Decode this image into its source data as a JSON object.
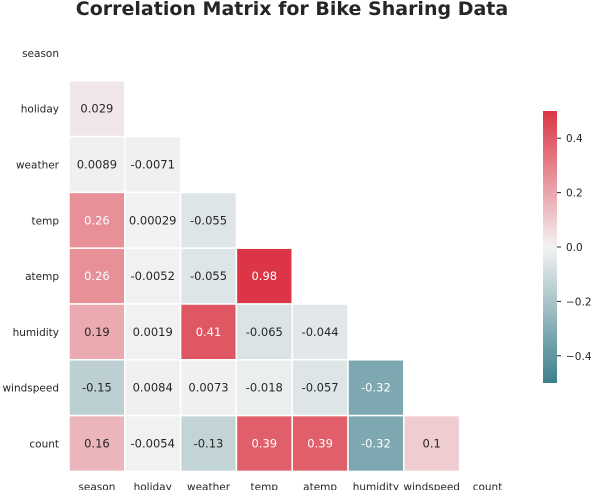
{
  "chart_data": {
    "type": "heatmap",
    "title": "Correlation Matrix for Bike Sharing Data",
    "labels": [
      "season",
      "holiday",
      "weather",
      "temp",
      "atemp",
      "humidity",
      "windspeed",
      "count"
    ],
    "mask": "upper-triangle-including-diagonal",
    "values": [
      [
        null,
        null,
        null,
        null,
        null,
        null,
        null,
        null
      ],
      [
        0.029,
        null,
        null,
        null,
        null,
        null,
        null,
        null
      ],
      [
        0.0089,
        -0.0071,
        null,
        null,
        null,
        null,
        null,
        null
      ],
      [
        0.26,
        0.00029,
        -0.055,
        null,
        null,
        null,
        null,
        null
      ],
      [
        0.26,
        -0.0052,
        -0.055,
        0.98,
        null,
        null,
        null,
        null
      ],
      [
        0.19,
        0.0019,
        0.41,
        -0.065,
        -0.044,
        null,
        null,
        null
      ],
      [
        -0.15,
        0.0084,
        0.0073,
        -0.018,
        -0.057,
        -0.32,
        null,
        null
      ],
      [
        0.16,
        -0.0054,
        -0.13,
        0.39,
        0.39,
        -0.32,
        0.1,
        null
      ]
    ],
    "value_labels": [
      [
        null,
        null,
        null,
        null,
        null,
        null,
        null,
        null
      ],
      [
        "0.029",
        null,
        null,
        null,
        null,
        null,
        null,
        null
      ],
      [
        "0.0089",
        "-0.0071",
        null,
        null,
        null,
        null,
        null,
        null
      ],
      [
        "0.26",
        "0.00029",
        "-0.055",
        null,
        null,
        null,
        null,
        null
      ],
      [
        "0.26",
        "-0.0052",
        "-0.055",
        "0.98",
        null,
        null,
        null,
        null
      ],
      [
        "0.19",
        "0.0019",
        "0.41",
        "-0.065",
        "-0.044",
        null,
        null,
        null
      ],
      [
        "-0.15",
        "0.0084",
        "0.0073",
        "-0.018",
        "-0.057",
        "-0.32",
        null,
        null
      ],
      [
        "0.16",
        "-0.0054",
        "-0.13",
        "0.39",
        "0.39",
        "-0.32",
        "0.1",
        null
      ]
    ],
    "color_range": [
      -0.5,
      0.5
    ],
    "colormap": {
      "negative": "#3d7f8c",
      "center": "#f2f2f2",
      "positive": "#dc3545"
    },
    "colorbar": {
      "ticks": [
        0.4,
        0.2,
        0,
        -0.2,
        -0.4
      ],
      "tick_labels": [
        "0.4",
        "0.2",
        "0.0",
        "−0.2",
        "−0.4"
      ],
      "placement": "right"
    },
    "grid": false
  }
}
